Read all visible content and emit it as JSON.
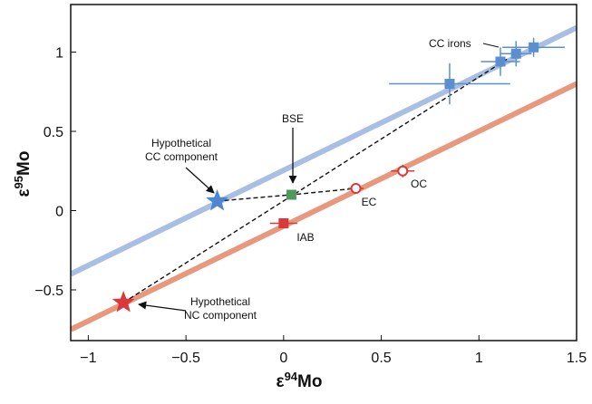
{
  "chart_data": {
    "type": "scatter",
    "xlabel": [
      "ε",
      "94",
      "Mo"
    ],
    "ylabel": [
      "ε",
      "95",
      "Mo"
    ],
    "xlim": [
      -1.09,
      1.5
    ],
    "ylim": [
      -0.82,
      1.3
    ],
    "xticks": [
      {
        "value": -1,
        "label": "−1"
      },
      {
        "value": -0.5,
        "label": "−0.5"
      },
      0,
      0.5,
      1,
      1.5
    ],
    "yticks": [
      {
        "value": -0.5,
        "label": "−0.5"
      },
      0,
      0.5,
      1
    ],
    "lines": [
      {
        "color": "#a8bee3",
        "x": [
          -1.09,
          1.5
        ],
        "values": [
          -0.4,
          1.154
        ]
      },
      {
        "color": "#e8987c",
        "x": [
          -1.09,
          1.5
        ],
        "values": [
          -0.75,
          0.8
        ]
      }
    ],
    "dashed_lines": [
      {
        "x": [
          -0.82,
          1.15
        ],
        "values": [
          -0.58,
          0.96
        ]
      },
      {
        "x": [
          -0.34,
          0.04,
          0.37
        ],
        "values": [
          0.06,
          0.1,
          0.14
        ]
      }
    ],
    "series": [
      {
        "name": "CC irons",
        "marker": "square",
        "color": "#5b8fd0",
        "x": [
          0.85,
          1.11,
          1.19,
          1.28
        ],
        "values": [
          0.8,
          0.94,
          0.99,
          1.03
        ],
        "xerr": [
          0.31,
          0.1,
          0.08,
          0.16
        ],
        "yerr": [
          0.13,
          0.09,
          0.08,
          0.06
        ]
      },
      {
        "name": "BSE",
        "marker": "square",
        "color": "#4f9a5a",
        "x": [
          0.04
        ],
        "values": [
          0.1
        ]
      },
      {
        "name": "IAB",
        "marker": "square",
        "color": "#d9393a",
        "x": [
          0.0
        ],
        "values": [
          -0.08
        ],
        "xerr": [
          0.07
        ]
      },
      {
        "name": "EC",
        "marker": "circle",
        "color": "#d9393a",
        "x": [
          0.37
        ],
        "values": [
          0.14
        ],
        "xerr": [
          0.04
        ]
      },
      {
        "name": "OC",
        "marker": "circle",
        "color": "#d9393a",
        "x": [
          0.61
        ],
        "values": [
          0.25
        ],
        "xerr": [
          0.06
        ],
        "yerr": [
          0.04
        ]
      },
      {
        "name": [
          "Hypothetical",
          "CC component"
        ],
        "marker": "star",
        "color": "#4f86cf",
        "x": [
          -0.34
        ],
        "values": [
          0.06
        ]
      },
      {
        "name": [
          "Hypothetical",
          "NC component"
        ],
        "marker": "star",
        "color": "#d9393a",
        "x": [
          -0.82
        ],
        "values": [
          -0.58
        ]
      }
    ]
  }
}
